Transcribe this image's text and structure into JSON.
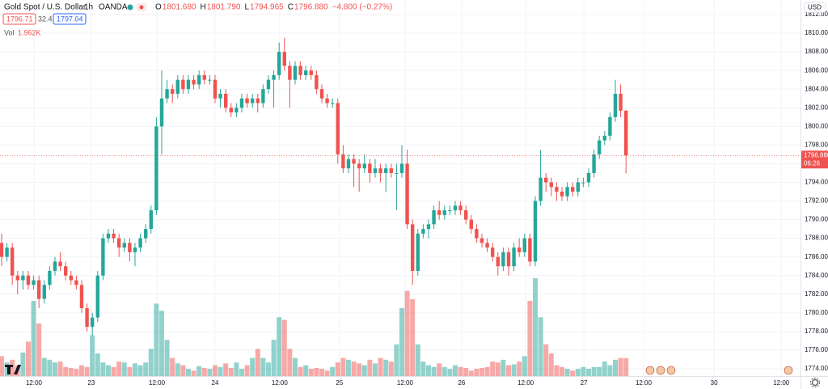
{
  "header": {
    "symbol": "Gold Spot / U.S. Dollar",
    "interval": "1h",
    "source": "OANDA",
    "ohlc": [
      [
        "O",
        "1801.680"
      ],
      [
        "H",
        "1801.790"
      ],
      [
        "L",
        "1794.965"
      ],
      [
        "C",
        "1796.880"
      ]
    ],
    "change": "−4.800 (−0.27%)",
    "bid": "1796.71",
    "spread": "32.4",
    "ask": "1797.04",
    "vol_label": "Vol",
    "vol_value": "1.962K",
    "currency": "USD",
    "countdown": "06:26"
  },
  "chart_data": {
    "type": "candlestick",
    "up_color": "#26a69a",
    "down_color": "#ef5350",
    "grid": true,
    "xlim": [
      -0.3,
      149.7
    ],
    "ylim": [
      1773.22,
      1813.56
    ],
    "vlim": [
      0,
      12
    ],
    "last_price": 1796.88,
    "last_price_label": "1796.880",
    "xticks": [
      {
        "value": 6.06,
        "label": "12:00"
      },
      {
        "value": 16.8,
        "label": "23"
      },
      {
        "value": 29.1,
        "label": "12:00"
      },
      {
        "value": 40,
        "label": "24"
      },
      {
        "value": 52.1,
        "label": "12:00"
      },
      {
        "value": 63.3,
        "label": "25"
      },
      {
        "value": 75.6,
        "label": "12:00"
      },
      {
        "value": 86.2,
        "label": "26"
      },
      {
        "value": 98.2,
        "label": "12:00"
      },
      {
        "value": 109.1,
        "label": "27"
      },
      {
        "value": 120.3,
        "label": "12:00"
      },
      {
        "value": 133.5,
        "label": "30"
      },
      {
        "value": 146.1,
        "label": "12:00"
      }
    ],
    "yticks": [
      {
        "value": 1774,
        "label": "1774.000"
      },
      {
        "value": 1776,
        "label": "1776.000"
      },
      {
        "value": 1778,
        "label": "1778.000"
      },
      {
        "value": 1780,
        "label": "1780.000"
      },
      {
        "value": 1782,
        "label": "1782.000"
      },
      {
        "value": 1784,
        "label": "1784.000"
      },
      {
        "value": 1786,
        "label": "1786.000"
      },
      {
        "value": 1788,
        "label": "1788.000"
      },
      {
        "value": 1790,
        "label": "1790.000"
      },
      {
        "value": 1792,
        "label": "1792.000"
      },
      {
        "value": 1794,
        "label": "1794.000"
      },
      {
        "value": 1796,
        "label": "1796.000"
      },
      {
        "value": 1798,
        "label": "1798.000"
      },
      {
        "value": 1800,
        "label": "1800.000"
      },
      {
        "value": 1802,
        "label": "1802.000"
      },
      {
        "value": 1804,
        "label": "1804.000"
      },
      {
        "value": 1806,
        "label": "1806.000"
      },
      {
        "value": 1808,
        "label": "1808.000"
      },
      {
        "value": 1810,
        "label": "1810.000"
      },
      {
        "value": 1812,
        "label": "1812.000"
      }
    ],
    "open": [
      1787.5,
      1786,
      1787,
      1784,
      1783.5,
      1784,
      1783,
      1783.5,
      1781.5,
      1783,
      1784.5,
      1785.5,
      1785,
      1784,
      1783.5,
      1783,
      1780.5,
      1778.5,
      1779.5,
      1784,
      1788,
      1788.5,
      1788,
      1787,
      1787.5,
      1786.5,
      1787,
      1788,
      1789,
      1791,
      1800,
      1803,
      1804,
      1803.5,
      1805,
      1804,
      1805,
      1804.5,
      1805.5,
      1805,
      1805,
      1803,
      1803.5,
      1802,
      1801.5,
      1802,
      1803,
      1802.5,
      1803,
      1802.5,
      1804,
      1805,
      1805.5,
      1808,
      1806.5,
      1805,
      1806.5,
      1805.5,
      1806,
      1805.5,
      1804,
      1803,
      1802.5,
      1802.5,
      1797,
      1795.5,
      1796.5,
      1796,
      1795.5,
      1796,
      1795,
      1795.5,
      1795,
      1795.5,
      1795,
      1795,
      1796,
      1789.5,
      1784.5,
      1788.5,
      1789,
      1789.5,
      1791,
      1790.5,
      1791,
      1791,
      1791.5,
      1791,
      1790,
      1789,
      1788,
      1787.5,
      1787,
      1786,
      1785,
      1786.5,
      1785,
      1787,
      1786.5,
      1788,
      1785.5,
      1792,
      1794.5,
      1794,
      1793.5,
      1793,
      1792.5,
      1793.5,
      1793,
      1794,
      1794,
      1795,
      1797,
      1798.5,
      1799,
      1801,
      1803.5,
      1801.68
    ],
    "high": [
      1788.5,
      1787.5,
      1787.5,
      1784.5,
      1784.5,
      1784.5,
      1784,
      1784,
      1783.5,
      1785,
      1786,
      1786.5,
      1785.5,
      1784.5,
      1784,
      1783.5,
      1781,
      1780,
      1784.5,
      1788.5,
      1789,
      1789,
      1788.5,
      1788,
      1788,
      1787.5,
      1788.5,
      1789.5,
      1791.5,
      1801,
      1806,
      1805,
      1804.5,
      1805.5,
      1805.5,
      1805.5,
      1805.5,
      1806,
      1806,
      1805.5,
      1805.5,
      1804,
      1804,
      1802.5,
      1802.5,
      1803.5,
      1803.5,
      1803.5,
      1803.5,
      1804.5,
      1805.5,
      1806,
      1809,
      1809.5,
      1807,
      1807,
      1807,
      1806.5,
      1806.5,
      1806,
      1804.5,
      1803.5,
      1803,
      1803,
      1798,
      1797,
      1797,
      1796.5,
      1797,
      1796.5,
      1796.5,
      1796,
      1796,
      1796,
      1796,
      1798,
      1797.5,
      1790,
      1789,
      1789.5,
      1790,
      1791.5,
      1792,
      1791.5,
      1791.5,
      1792,
      1792,
      1791.5,
      1790.5,
      1789.5,
      1788.5,
      1788,
      1787.5,
      1786.5,
      1787,
      1787,
      1787.5,
      1788,
      1788.5,
      1788.5,
      1792.5,
      1797.5,
      1795,
      1794.5,
      1794,
      1793.5,
      1794,
      1794,
      1794.5,
      1794.5,
      1795.5,
      1797.5,
      1799,
      1799.5,
      1801.5,
      1805,
      1804.5,
      1801.79
    ],
    "low": [
      1785,
      1785.5,
      1783,
      1782,
      1782.5,
      1782.5,
      1782.5,
      1780.5,
      1781,
      1782.5,
      1784,
      1784.5,
      1783.5,
      1783,
      1782.5,
      1780,
      1778,
      1777.5,
      1779,
      1783.5,
      1787.5,
      1787.5,
      1786,
      1786.5,
      1785.5,
      1785,
      1786.5,
      1787.5,
      1788.5,
      1790.5,
      1797,
      1802.5,
      1802.5,
      1803,
      1803.5,
      1803.5,
      1804,
      1804,
      1804.5,
      1804.5,
      1802.5,
      1802,
      1801.5,
      1801,
      1801,
      1801.5,
      1802,
      1802,
      1801.5,
      1802,
      1803.5,
      1802,
      1805,
      1806,
      1802,
      1804.5,
      1805,
      1805,
      1805,
      1803.5,
      1802.5,
      1802,
      1802,
      1796,
      1795,
      1795,
      1793.5,
      1793,
      1795,
      1794,
      1794.5,
      1794,
      1793,
      1794.5,
      1791,
      1794.5,
      1789,
      1783,
      1784,
      1788,
      1788,
      1789,
      1790,
      1790,
      1790.5,
      1790.5,
      1790.5,
      1789.5,
      1788.5,
      1787.5,
      1787,
      1786.5,
      1785.5,
      1784,
      1784.5,
      1784,
      1784.5,
      1786,
      1786,
      1785,
      1785,
      1791.5,
      1793,
      1792.5,
      1792,
      1792,
      1792,
      1792.5,
      1792.5,
      1793.5,
      1793.5,
      1794.5,
      1796.5,
      1798,
      1798.5,
      1800.5,
      1801,
      1794.965
    ],
    "close": [
      1786,
      1787,
      1784,
      1783.5,
      1784,
      1783,
      1783.5,
      1781.5,
      1783,
      1784.5,
      1785.5,
      1785,
      1784,
      1783.5,
      1783,
      1780.5,
      1778.5,
      1779.5,
      1784,
      1788,
      1788.5,
      1788,
      1787,
      1787.5,
      1786.5,
      1787,
      1788,
      1789,
      1791,
      1800,
      1803,
      1804,
      1803.5,
      1805,
      1804,
      1805,
      1804.5,
      1805.5,
      1805,
      1805,
      1803,
      1803.5,
      1802,
      1801.5,
      1802,
      1803,
      1802.5,
      1803,
      1802.5,
      1804,
      1805,
      1805.5,
      1808,
      1806.5,
      1805,
      1806.5,
      1805.5,
      1806,
      1805.5,
      1804,
      1803,
      1802.5,
      1802.5,
      1797,
      1795.5,
      1796.5,
      1796,
      1795.5,
      1796,
      1795,
      1795.5,
      1795,
      1795.5,
      1795,
      1795,
      1796,
      1789.5,
      1784.5,
      1788.5,
      1789,
      1789.5,
      1791,
      1790.5,
      1791,
      1791,
      1791.5,
      1791,
      1790,
      1789,
      1788,
      1787.5,
      1787,
      1786,
      1785,
      1786.5,
      1785,
      1787,
      1786.5,
      1788,
      1785.5,
      1792,
      1794.5,
      1794,
      1793.5,
      1793,
      1792.5,
      1793.5,
      1793,
      1794,
      1794,
      1795,
      1797,
      1798.5,
      1799,
      1801,
      1803.5,
      1801.68,
      1796.88
    ],
    "volume": [
      2.2,
      1.5,
      1.8,
      1.2,
      2.6,
      3.8,
      8.3,
      5.8,
      2.0,
      1.8,
      1.5,
      1.6,
      1.0,
      0.9,
      0.8,
      1.2,
      1.0,
      4.5,
      2.5,
      1.5,
      1.2,
      1.0,
      1.6,
      1.5,
      1.0,
      1.4,
      1.2,
      1.5,
      3.0,
      8.0,
      7.2,
      4.0,
      2.0,
      1.4,
      1.2,
      0.8,
      0.6,
      1.1,
      0.9,
      0.8,
      1.2,
      1.0,
      1.4,
      0.9,
      1.5,
      0.8,
      1.2,
      2.0,
      3.0,
      2.0,
      1.5,
      4.0,
      6.5,
      6.2,
      3.0,
      2.0,
      1.0,
      1.2,
      0.8,
      0.9,
      0.8,
      0.6,
      1.0,
      1.5,
      2.0,
      1.8,
      1.6,
      1.4,
      1.2,
      1.8,
      1.4,
      2.0,
      1.8,
      1.6,
      3.5,
      7.5,
      9.4,
      8.5,
      3.5,
      1.6,
      1.2,
      1.0,
      1.4,
      1.0,
      0.8,
      1.2,
      1.0,
      0.9,
      0.6,
      0.8,
      0.9,
      1.0,
      1.6,
      1.5,
      1.8,
      1.2,
      1.3,
      1.6,
      2.2,
      8.3,
      10.8,
      6.5,
      3.5,
      2.5,
      1.2,
      1.0,
      0.8,
      0.6,
      0.8,
      1.0,
      0.8,
      1.0,
      1.0,
      1.6,
      1.2,
      1.8,
      2.0,
      1.962
    ]
  }
}
